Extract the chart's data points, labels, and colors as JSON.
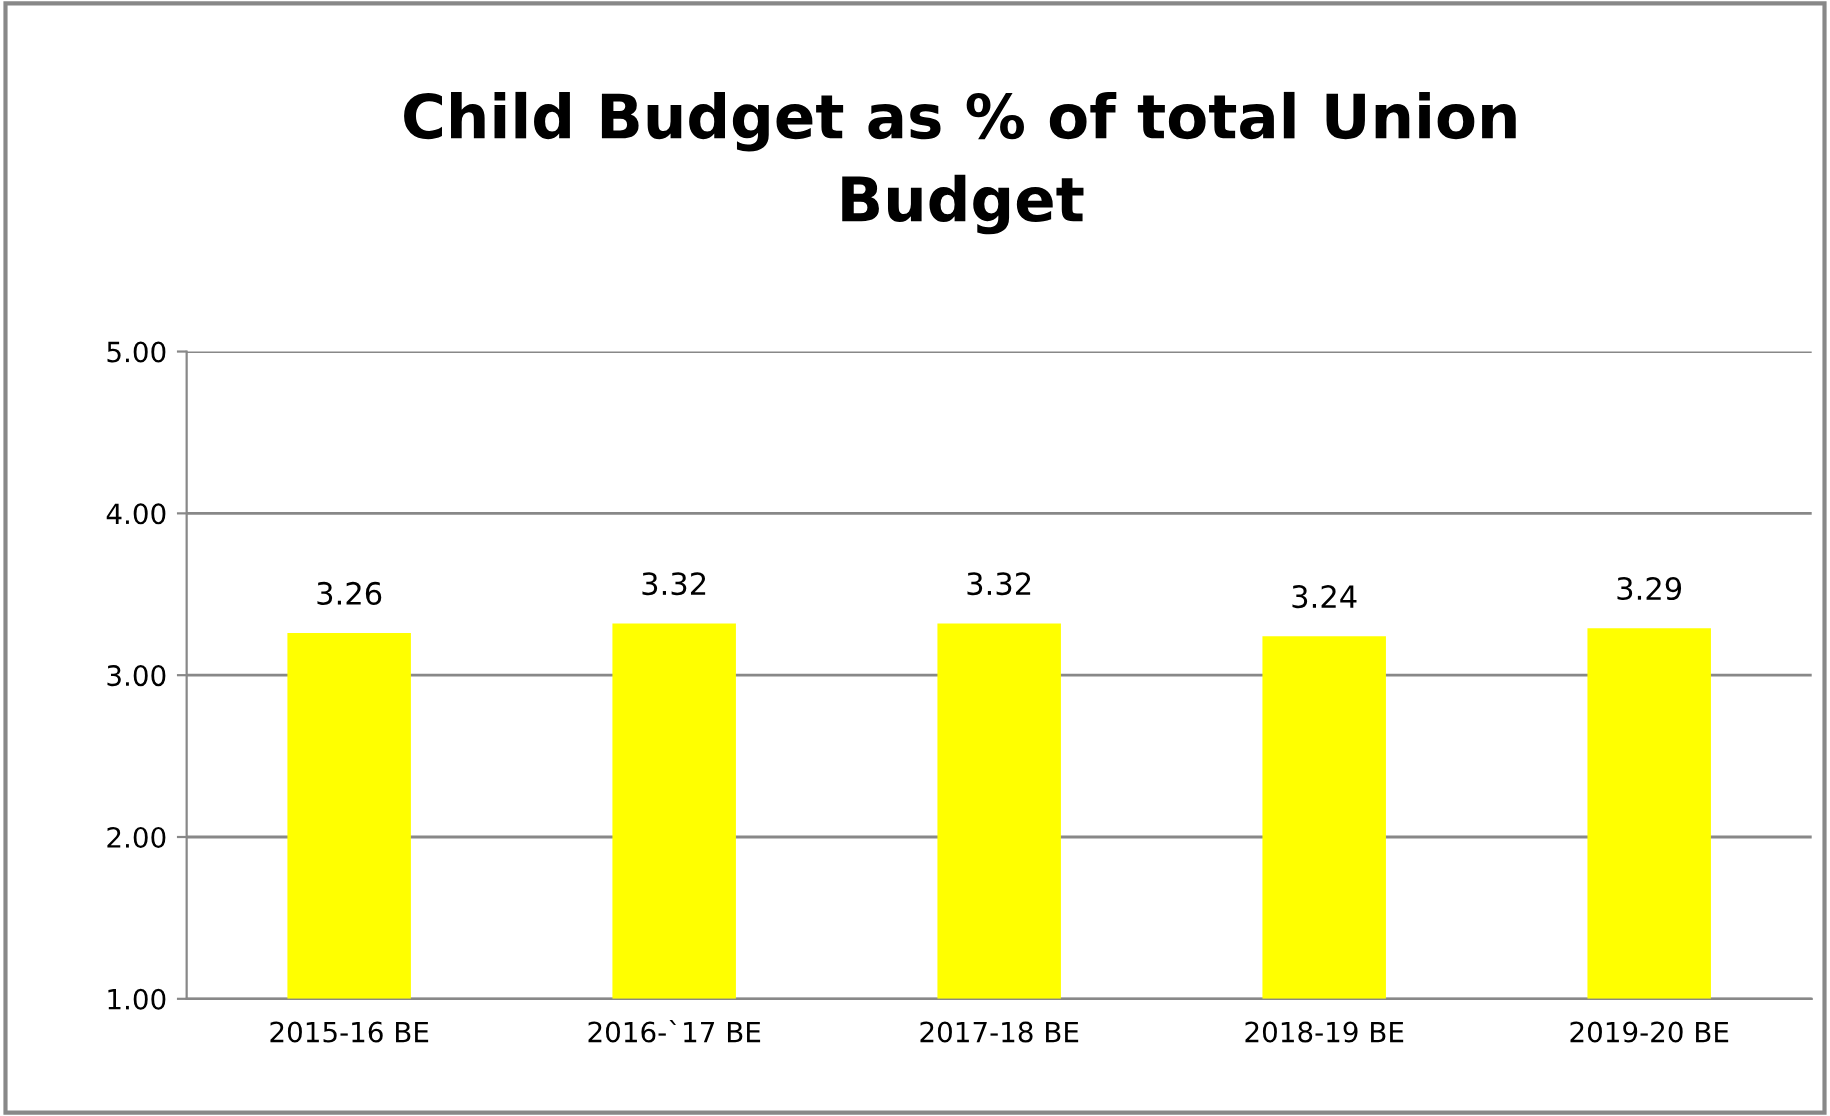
{
  "chart_data": {
    "type": "bar",
    "title": "Child Budget as % of total Union\nBudget",
    "categories": [
      "2015-16 BE",
      "2016-`17 BE",
      "2017-18 BE",
      "2018-19 BE",
      "2019-20 BE"
    ],
    "values": [
      3.26,
      3.32,
      3.32,
      3.24,
      3.29
    ],
    "color": "#ffff00",
    "ylim": [
      1,
      5
    ],
    "yticks": [
      {
        "value": 1,
        "label": "1.00"
      },
      {
        "value": 2,
        "label": "2.00"
      },
      {
        "value": 3,
        "label": "3.00"
      },
      {
        "value": 4,
        "label": "4.00"
      },
      {
        "value": 5,
        "label": "5.00"
      }
    ],
    "grid": "y",
    "data_labels": true
  }
}
